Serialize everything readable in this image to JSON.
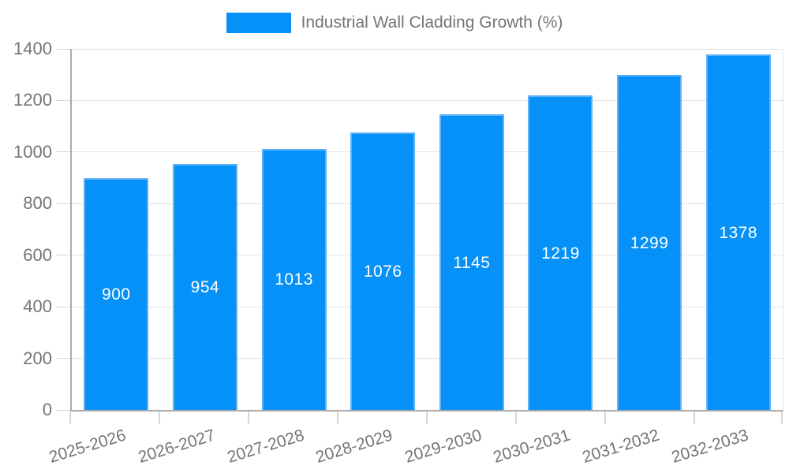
{
  "chart_data": {
    "type": "bar",
    "title": "Industrial Wall Cladding Growth (%)",
    "legend": [
      "Industrial Wall Cladding Growth (%)"
    ],
    "legend_position": "top-center",
    "categories": [
      "2025-2026",
      "2026-2027",
      "2027-2028",
      "2028-2029",
      "2029-2030",
      "2030-2031",
      "2031-2032",
      "2032-2033"
    ],
    "values": [
      900,
      954,
      1013,
      1076,
      1145,
      1219,
      1299,
      1378
    ],
    "value_labels": [
      "900",
      "954",
      "1013",
      "1076",
      "1145",
      "1219",
      "1299",
      "1378"
    ],
    "xlabel": "",
    "ylabel": "",
    "ylim": [
      0,
      1400
    ],
    "yticks": [
      0,
      200,
      400,
      600,
      800,
      1000,
      1200,
      1400
    ],
    "grid": "horizontal",
    "x_tick_rotation_deg": -17,
    "colors": {
      "bar_fill": "#0591f8",
      "bar_border": "#5fb1f8",
      "value_label_text": "#ffffff",
      "axis_text": "#757575",
      "gridline": "#e3e3e3",
      "axis_line": "#ababab"
    }
  }
}
